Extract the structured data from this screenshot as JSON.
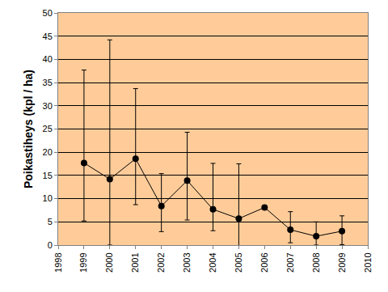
{
  "chart_data": {
    "type": "line",
    "y_label": "Poikastiheys (kpl / ha)",
    "x": [
      1999,
      2000,
      2001,
      2002,
      2003,
      2004,
      2005,
      2006,
      2007,
      2008,
      2009
    ],
    "series": [
      {
        "color": "#000000",
        "marker": "circle",
        "line_style": "solid",
        "values": [
          17.7,
          14.2,
          18.6,
          8.4,
          13.9,
          7.7,
          5.7,
          8.1,
          3.3,
          1.9,
          3.0
        ],
        "error_plus": [
          20.0,
          30.0,
          15.1,
          7.0,
          10.4,
          9.9,
          11.8,
          null,
          3.9,
          3.1,
          3.3
        ],
        "error_minus": [
          12.5,
          14.2,
          9.9,
          5.5,
          8.5,
          4.6,
          6.0,
          null,
          2.8,
          1.9,
          2.9
        ]
      }
    ],
    "xlim": [
      1998,
      2010
    ],
    "xticks": [
      1998,
      1999,
      2000,
      2001,
      2002,
      2003,
      2004,
      2005,
      2006,
      2007,
      2008,
      2009,
      2010
    ],
    "ylim": [
      0,
      50
    ],
    "yticks": [
      0,
      5,
      10,
      15,
      20,
      25,
      30,
      35,
      40,
      45,
      50
    ],
    "grid": true
  }
}
